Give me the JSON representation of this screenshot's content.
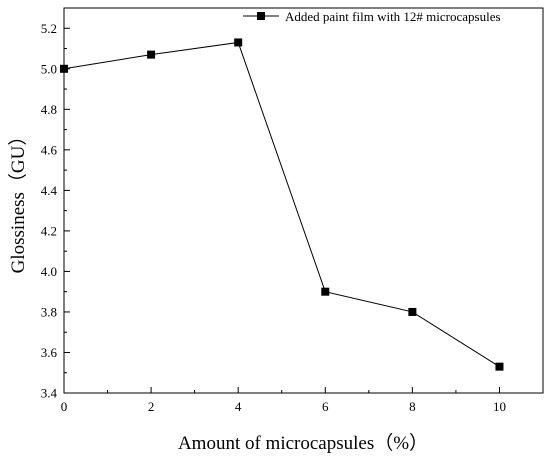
{
  "chart_data": {
    "type": "line",
    "xlabel": "Amount of microcapsules（%）",
    "ylabel": "Glossiness（GU）",
    "xlim": [
      0,
      11
    ],
    "ylim": [
      3.4,
      5.3
    ],
    "x_ticks": [
      0,
      2,
      4,
      6,
      8,
      10
    ],
    "x_tick_labels": [
      "0",
      "2",
      "4",
      "6",
      "8",
      "10"
    ],
    "y_ticks": [
      3.4,
      3.6,
      3.8,
      4.0,
      4.2,
      4.4,
      4.6,
      4.8,
      5.0,
      5.2
    ],
    "y_tick_labels": [
      "3.4",
      "3.6",
      "3.8",
      "4.0",
      "4.2",
      "4.4",
      "4.6",
      "4.8",
      "5.0",
      "5.2"
    ],
    "grid": false,
    "legend_position": "top-right",
    "series": [
      {
        "name": "Added paint film with 12# microcapsules",
        "marker": "square",
        "color": "#000000",
        "x": [
          0,
          2,
          4,
          6,
          8,
          10
        ],
        "y": [
          5.0,
          5.07,
          5.13,
          3.9,
          3.8,
          3.53
        ]
      }
    ]
  }
}
